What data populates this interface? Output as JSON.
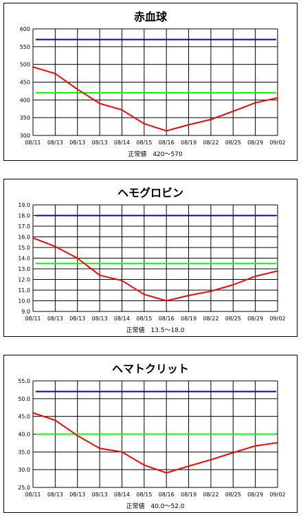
{
  "chart_data": [
    {
      "type": "line",
      "title": "赤血球",
      "normal_range": "正常値　420〜570",
      "categories": [
        "08/11",
        "08/13",
        "08/13",
        "08/13",
        "08/14",
        "08/15",
        "08/16",
        "08/19",
        "08/22",
        "08/25",
        "08/29",
        "09/02"
      ],
      "ylim": [
        300,
        600
      ],
      "yticks": [
        "300",
        "350",
        "400",
        "450",
        "500",
        "550",
        "600"
      ],
      "values": [
        493,
        474,
        430,
        390,
        372,
        333,
        313,
        330,
        345,
        368,
        392,
        406
      ],
      "upper_limit": 570,
      "lower_limit": 420,
      "grid": true,
      "colors": {
        "series": "#ff0000",
        "upper": "#0000c0",
        "lower": "#00ff00"
      }
    },
    {
      "type": "line",
      "title": "ヘモグロビン",
      "normal_range": "正常値　13.5〜18.0",
      "categories": [
        "08/11",
        "08/13",
        "08/13",
        "08/13",
        "08/14",
        "08/15",
        "08/16",
        "08/19",
        "08/22",
        "08/25",
        "08/29",
        "09/02"
      ],
      "ylim": [
        9.0,
        19.0
      ],
      "yticks": [
        "9.0",
        "10.0",
        "11.0",
        "12.0",
        "13.0",
        "14.0",
        "15.0",
        "16.0",
        "17.0",
        "18.0",
        "19.0"
      ],
      "values": [
        15.9,
        15.1,
        14.0,
        12.4,
        11.9,
        10.6,
        10.0,
        10.5,
        10.9,
        11.5,
        12.3,
        12.8
      ],
      "upper_limit": 18.0,
      "lower_limit": 13.5,
      "grid": true,
      "colors": {
        "series": "#ff0000",
        "upper": "#0000c0",
        "lower": "#00ff00"
      }
    },
    {
      "type": "line",
      "title": "ヘマトクリット",
      "normal_range": "正常値　40.0〜52.0",
      "categories": [
        "08/11",
        "08/13",
        "08/13",
        "08/13",
        "08/14",
        "08/15",
        "08/16",
        "08/19",
        "08/22",
        "08/25",
        "08/29",
        "09/02"
      ],
      "ylim": [
        25.0,
        55.0
      ],
      "yticks": [
        "25.0",
        "30.0",
        "35.0",
        "40.0",
        "45.0",
        "50.0",
        "55.0"
      ],
      "values": [
        46.0,
        43.9,
        39.6,
        36.0,
        35.0,
        31.3,
        29.1,
        31.0,
        32.8,
        34.8,
        36.7,
        37.6
      ],
      "upper_limit": 52.0,
      "lower_limit": 40.0,
      "grid": true,
      "colors": {
        "series": "#ff0000",
        "upper": "#0000c0",
        "lower": "#00ff00"
      }
    }
  ]
}
